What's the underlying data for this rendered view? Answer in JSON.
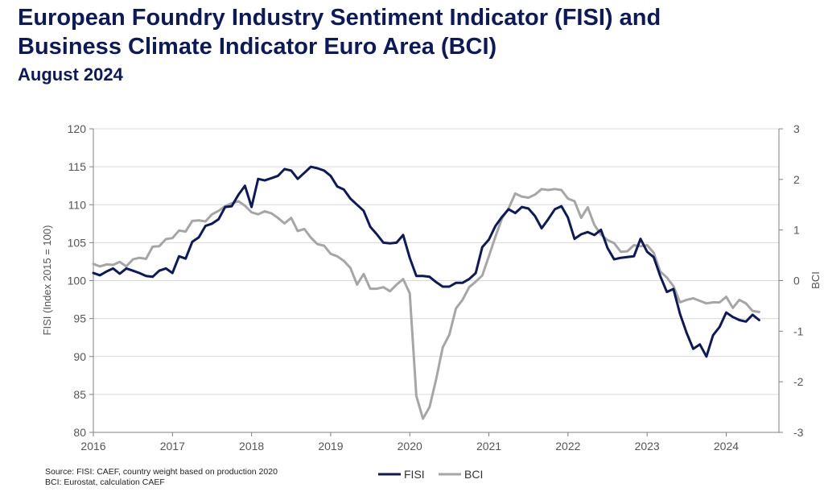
{
  "header": {
    "title_line1": "European Foundry Industry Sentiment Indicator (FISI) and",
    "title_line2": "Business Climate Indicator Euro Area (BCI)",
    "subtitle": "August 2024"
  },
  "footer": {
    "source_line1": "Source: FISI: CAEF, country weight based on production 2020",
    "source_line2": "BCI: Eurostat, calculation CAEF"
  },
  "colors": {
    "fisi": "#0c1a5c",
    "bci": "#a6a6a6",
    "grid": "#d9d9d9",
    "axis": "#808080"
  },
  "chart_data": {
    "type": "line",
    "title": "European Foundry Industry Sentiment Indicator (FISI) and Business Climate Indicator Euro Area (BCI)",
    "subtitle": "August 2024",
    "x_start": "2016-01",
    "x_end": "2024-08",
    "x_ticks": [
      "2016",
      "2017",
      "2018",
      "2019",
      "2020",
      "2021",
      "2022",
      "2023",
      "2024"
    ],
    "ylabel": "FISI (Index 2015 = 100)",
    "ylim": [
      80,
      120
    ],
    "y_ticks": [
      "80",
      "85",
      "90",
      "95",
      "100",
      "105",
      "110",
      "115",
      "120"
    ],
    "y2label": "BCI",
    "y2lim": [
      -3,
      3
    ],
    "y2_ticks": [
      "-3",
      "-2",
      "-1",
      "0",
      "1",
      "2",
      "3"
    ],
    "grid": true,
    "legend_position": "bottom-center",
    "series": [
      {
        "name": "FISI",
        "axis": "left",
        "values": [
          101.0,
          100.7,
          101.2,
          101.6,
          100.9,
          101.6,
          101.3,
          101.0,
          100.6,
          100.5,
          101.3,
          101.6,
          101.0,
          103.2,
          102.9,
          105.1,
          105.7,
          107.2,
          107.5,
          108.1,
          109.7,
          109.8,
          111.3,
          112.5,
          109.7,
          113.4,
          113.2,
          113.5,
          113.8,
          114.7,
          114.5,
          113.4,
          114.2,
          115.0,
          114.8,
          114.5,
          113.8,
          112.4,
          112.0,
          110.8,
          110.0,
          109.2,
          107.1,
          106.1,
          105.0,
          104.9,
          105.0,
          106.0,
          103.0,
          100.6,
          100.6,
          100.5,
          99.8,
          99.2,
          99.2,
          99.7,
          99.7,
          100.2,
          101.0,
          104.4,
          105.4,
          107.2,
          108.4,
          109.4,
          108.9,
          109.7,
          109.5,
          108.5,
          106.9,
          108.1,
          109.4,
          109.8,
          108.3,
          105.5,
          106.1,
          106.4,
          106.0,
          106.7,
          104.3,
          102.8,
          103.0,
          103.1,
          103.2,
          105.5,
          103.8,
          103.1,
          100.6,
          98.5,
          98.9,
          95.6,
          93.1,
          91.0,
          91.6,
          90.0,
          92.8,
          93.9,
          95.8,
          95.2,
          94.8,
          94.6,
          95.5,
          94.8
        ]
      },
      {
        "name": "BCI",
        "axis": "right",
        "values": [
          0.33,
          0.28,
          0.32,
          0.31,
          0.37,
          0.28,
          0.42,
          0.45,
          0.43,
          0.67,
          0.68,
          0.82,
          0.84,
          0.99,
          0.97,
          1.18,
          1.19,
          1.17,
          1.31,
          1.38,
          1.47,
          1.53,
          1.57,
          1.48,
          1.35,
          1.31,
          1.37,
          1.33,
          1.24,
          1.13,
          1.24,
          0.98,
          1.02,
          0.85,
          0.72,
          0.69,
          0.53,
          0.48,
          0.39,
          0.25,
          -0.08,
          0.13,
          -0.16,
          -0.16,
          -0.13,
          -0.21,
          -0.08,
          0.03,
          -0.25,
          -2.28,
          -2.73,
          -2.5,
          -1.95,
          -1.32,
          -1.07,
          -0.55,
          -0.38,
          -0.13,
          -0.02,
          0.1,
          0.48,
          0.87,
          1.23,
          1.43,
          1.72,
          1.66,
          1.64,
          1.7,
          1.81,
          1.79,
          1.81,
          1.79,
          1.62,
          1.57,
          1.24,
          1.45,
          1.1,
          0.91,
          0.8,
          0.74,
          0.57,
          0.58,
          0.7,
          0.68,
          0.7,
          0.55,
          0.18,
          0.06,
          -0.11,
          -0.43,
          -0.38,
          -0.35,
          -0.4,
          -0.45,
          -0.43,
          -0.43,
          -0.32,
          -0.54,
          -0.38,
          -0.45,
          -0.6,
          -0.62
        ]
      }
    ]
  }
}
